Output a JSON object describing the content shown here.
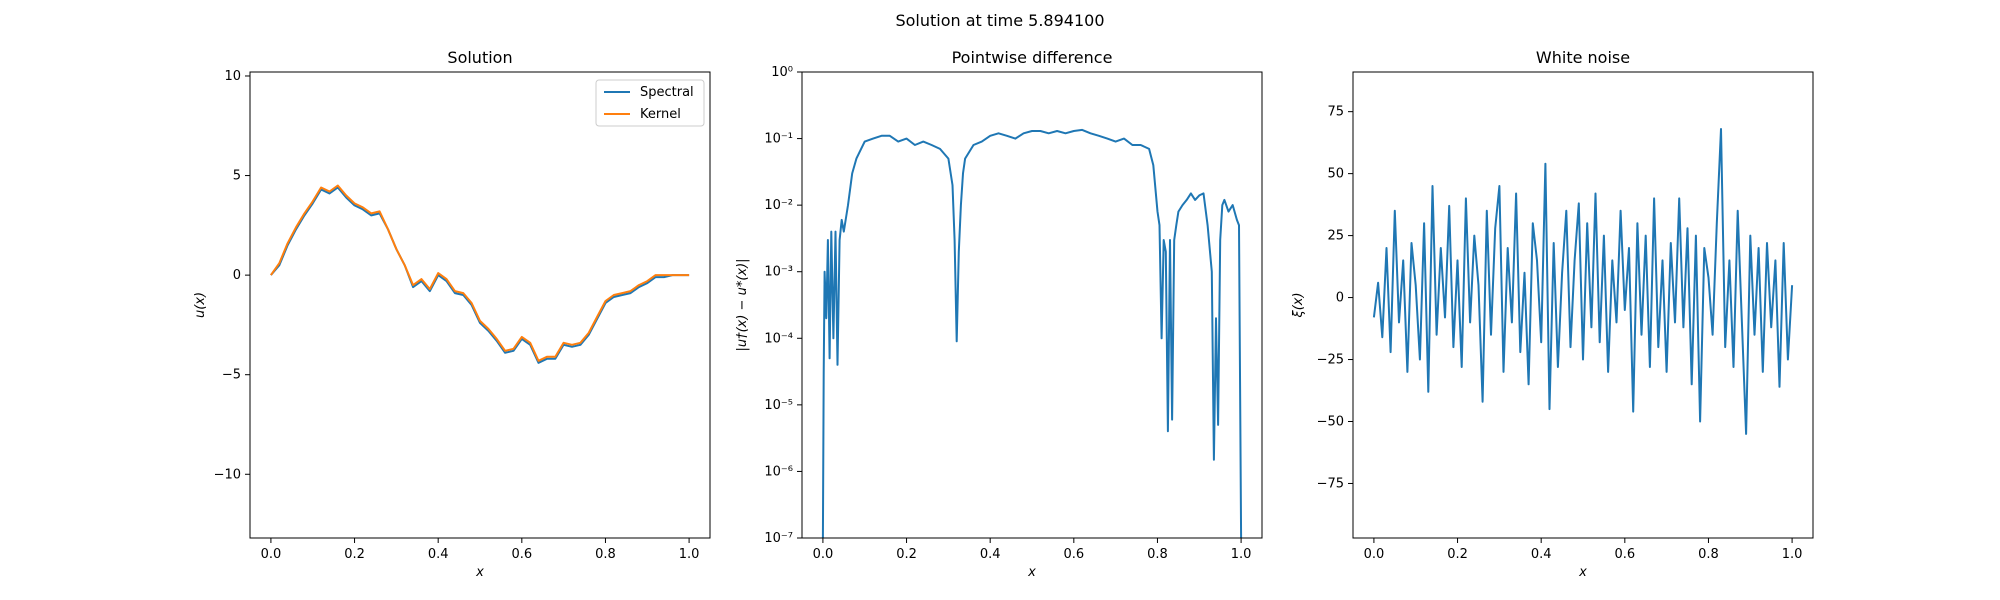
{
  "figure": {
    "suptitle": "Solution at time 5.894100"
  },
  "colors": {
    "spectral": "#1f77b4",
    "kernel": "#ff7f0e",
    "line": "#1f77b4"
  },
  "chart_data": [
    {
      "type": "line",
      "title": "Solution",
      "xlabel": "x",
      "ylabel": "u(x)",
      "xlim": [
        -0.05,
        1.05
      ],
      "ylim": [
        -13.2,
        10.2
      ],
      "xticks": [
        0.0,
        0.2,
        0.4,
        0.6,
        0.8,
        1.0
      ],
      "xtick_labels": [
        "0.0",
        "0.2",
        "0.4",
        "0.6",
        "0.8",
        "1.0"
      ],
      "yticks": [
        -10,
        -5,
        0,
        5,
        10
      ],
      "ytick_labels": [
        "−10",
        "−5",
        "0",
        "5",
        "10"
      ],
      "legend": "top-right",
      "series": [
        {
          "name": "Spectral",
          "x": [
            0.0,
            0.02,
            0.04,
            0.06,
            0.08,
            0.1,
            0.12,
            0.14,
            0.16,
            0.18,
            0.2,
            0.22,
            0.24,
            0.26,
            0.28,
            0.3,
            0.32,
            0.34,
            0.36,
            0.38,
            0.4,
            0.42,
            0.44,
            0.46,
            0.48,
            0.5,
            0.52,
            0.54,
            0.56,
            0.58,
            0.6,
            0.62,
            0.64,
            0.66,
            0.68,
            0.7,
            0.72,
            0.74,
            0.76,
            0.78,
            0.8,
            0.82,
            0.84,
            0.86,
            0.88,
            0.9,
            0.92,
            0.94,
            0.96,
            0.98,
            1.0
          ],
          "values": [
            0.0,
            0.5,
            1.5,
            2.3,
            3.0,
            3.6,
            4.3,
            4.1,
            4.4,
            3.9,
            3.5,
            3.3,
            3.0,
            3.1,
            2.3,
            1.3,
            0.5,
            -0.6,
            -0.3,
            -0.8,
            0.0,
            -0.3,
            -0.9,
            -1.0,
            -1.5,
            -2.4,
            -2.8,
            -3.3,
            -3.9,
            -3.8,
            -3.2,
            -3.5,
            -4.4,
            -4.2,
            -4.2,
            -3.5,
            -3.6,
            -3.5,
            -3.0,
            -2.2,
            -1.4,
            -1.1,
            -1.0,
            -0.9,
            -0.6,
            -0.4,
            -0.1,
            -0.1,
            0.0,
            0.0,
            0.0
          ]
        },
        {
          "name": "Kernel",
          "x": [
            0.0,
            0.02,
            0.04,
            0.06,
            0.08,
            0.1,
            0.12,
            0.14,
            0.16,
            0.18,
            0.2,
            0.22,
            0.24,
            0.26,
            0.28,
            0.3,
            0.32,
            0.34,
            0.36,
            0.38,
            0.4,
            0.42,
            0.44,
            0.46,
            0.48,
            0.5,
            0.52,
            0.54,
            0.56,
            0.58,
            0.6,
            0.62,
            0.64,
            0.66,
            0.68,
            0.7,
            0.72,
            0.74,
            0.76,
            0.78,
            0.8,
            0.82,
            0.84,
            0.86,
            0.88,
            0.9,
            0.92,
            0.94,
            0.96,
            0.98,
            1.0
          ],
          "values": [
            0.0,
            0.6,
            1.6,
            2.4,
            3.1,
            3.7,
            4.4,
            4.2,
            4.5,
            4.0,
            3.6,
            3.4,
            3.1,
            3.2,
            2.3,
            1.3,
            0.5,
            -0.5,
            -0.2,
            -0.7,
            0.1,
            -0.2,
            -0.8,
            -0.9,
            -1.4,
            -2.3,
            -2.7,
            -3.2,
            -3.8,
            -3.7,
            -3.1,
            -3.4,
            -4.3,
            -4.1,
            -4.1,
            -3.4,
            -3.5,
            -3.4,
            -2.9,
            -2.1,
            -1.3,
            -1.0,
            -0.9,
            -0.8,
            -0.5,
            -0.3,
            0.0,
            0.0,
            0.0,
            0.0,
            0.0
          ]
        }
      ]
    },
    {
      "type": "line",
      "title": "Pointwise difference",
      "xlabel": "x",
      "ylabel": "|u†(x) − u*(x)|",
      "yscale": "log",
      "xlim": [
        -0.05,
        1.05
      ],
      "ylim": [
        1e-07,
        1
      ],
      "xticks": [
        0.0,
        0.2,
        0.4,
        0.6,
        0.8,
        1.0
      ],
      "xtick_labels": [
        "0.0",
        "0.2",
        "0.4",
        "0.6",
        "0.8",
        "1.0"
      ],
      "yticks": [
        1e-07,
        1e-06,
        1e-05,
        0.0001,
        0.001,
        0.01,
        0.1,
        1
      ],
      "ytick_labels": [
        "10⁻⁷",
        "10⁻⁶",
        "10⁻⁵",
        "10⁻⁴",
        "10⁻³",
        "10⁻²",
        "10⁻¹",
        "10⁰"
      ],
      "series": [
        {
          "x": [
            0.0,
            0.002,
            0.004,
            0.008,
            0.012,
            0.016,
            0.02,
            0.025,
            0.03,
            0.035,
            0.04,
            0.045,
            0.05,
            0.06,
            0.07,
            0.08,
            0.1,
            0.12,
            0.14,
            0.16,
            0.18,
            0.2,
            0.22,
            0.24,
            0.26,
            0.28,
            0.3,
            0.31,
            0.315,
            0.32,
            0.325,
            0.33,
            0.335,
            0.34,
            0.36,
            0.38,
            0.4,
            0.42,
            0.44,
            0.46,
            0.48,
            0.5,
            0.52,
            0.54,
            0.56,
            0.58,
            0.6,
            0.62,
            0.64,
            0.66,
            0.68,
            0.7,
            0.72,
            0.74,
            0.76,
            0.78,
            0.79,
            0.8,
            0.805,
            0.81,
            0.815,
            0.82,
            0.825,
            0.83,
            0.835,
            0.84,
            0.845,
            0.85,
            0.86,
            0.87,
            0.88,
            0.89,
            0.9,
            0.91,
            0.92,
            0.93,
            0.935,
            0.94,
            0.945,
            0.95,
            0.955,
            0.96,
            0.97,
            0.98,
            0.99,
            0.995,
            1.0
          ],
          "values": [
            1e-07,
            3e-05,
            0.001,
            0.0002,
            0.003,
            5e-05,
            0.004,
            0.0001,
            0.004,
            4e-05,
            0.003,
            0.006,
            0.004,
            0.01,
            0.03,
            0.05,
            0.09,
            0.1,
            0.11,
            0.11,
            0.09,
            0.1,
            0.08,
            0.09,
            0.08,
            0.07,
            0.05,
            0.02,
            0.003,
            9e-05,
            0.002,
            0.01,
            0.03,
            0.05,
            0.08,
            0.09,
            0.11,
            0.12,
            0.11,
            0.1,
            0.12,
            0.13,
            0.13,
            0.12,
            0.13,
            0.12,
            0.13,
            0.135,
            0.12,
            0.11,
            0.1,
            0.09,
            0.1,
            0.08,
            0.08,
            0.07,
            0.04,
            0.008,
            0.005,
            0.0001,
            0.003,
            0.002,
            4e-06,
            0.003,
            6e-06,
            0.003,
            0.005,
            0.008,
            0.01,
            0.012,
            0.015,
            0.012,
            0.014,
            0.015,
            0.005,
            0.001,
            1.5e-06,
            0.0002,
            5e-06,
            0.003,
            0.01,
            0.012,
            0.008,
            0.01,
            0.006,
            0.005,
            1e-07
          ]
        }
      ]
    },
    {
      "type": "line",
      "title": "White noise",
      "xlabel": "x",
      "ylabel": "ξ(x)",
      "xlim": [
        -0.05,
        1.05
      ],
      "ylim": [
        -97,
        91
      ],
      "xticks": [
        0.0,
        0.2,
        0.4,
        0.6,
        0.8,
        1.0
      ],
      "xtick_labels": [
        "0.0",
        "0.2",
        "0.4",
        "0.6",
        "0.8",
        "1.0"
      ],
      "yticks": [
        -75,
        -50,
        -25,
        0,
        25,
        50,
        75
      ],
      "ytick_labels": [
        "−75",
        "−50",
        "−25",
        "0",
        "25",
        "50",
        "75"
      ],
      "series": [
        {
          "x": [
            0.0,
            0.01,
            0.02,
            0.03,
            0.04,
            0.05,
            0.06,
            0.07,
            0.08,
            0.09,
            0.1,
            0.11,
            0.12,
            0.13,
            0.14,
            0.15,
            0.16,
            0.17,
            0.18,
            0.19,
            0.2,
            0.21,
            0.22,
            0.23,
            0.24,
            0.25,
            0.26,
            0.27,
            0.28,
            0.29,
            0.3,
            0.31,
            0.32,
            0.33,
            0.34,
            0.35,
            0.36,
            0.37,
            0.38,
            0.39,
            0.4,
            0.41,
            0.42,
            0.43,
            0.44,
            0.45,
            0.46,
            0.47,
            0.48,
            0.49,
            0.5,
            0.51,
            0.52,
            0.53,
            0.54,
            0.55,
            0.56,
            0.57,
            0.58,
            0.59,
            0.6,
            0.61,
            0.62,
            0.63,
            0.64,
            0.65,
            0.66,
            0.67,
            0.68,
            0.69,
            0.7,
            0.71,
            0.72,
            0.73,
            0.74,
            0.75,
            0.76,
            0.77,
            0.78,
            0.79,
            0.8,
            0.81,
            0.82,
            0.83,
            0.84,
            0.85,
            0.86,
            0.87,
            0.88,
            0.89,
            0.9,
            0.91,
            0.92,
            0.93,
            0.94,
            0.95,
            0.96,
            0.97,
            0.98,
            0.99,
            1.0
          ],
          "values": [
            -8,
            6,
            -16,
            20,
            -22,
            35,
            -10,
            15,
            -30,
            22,
            5,
            -25,
            30,
            -38,
            45,
            -15,
            20,
            -8,
            37,
            -20,
            15,
            -28,
            40,
            -10,
            25,
            5,
            -42,
            35,
            -15,
            28,
            45,
            -30,
            20,
            -10,
            42,
            -22,
            10,
            -35,
            30,
            15,
            -18,
            54,
            -45,
            22,
            -28,
            10,
            35,
            -20,
            15,
            38,
            -25,
            30,
            -12,
            42,
            -18,
            25,
            -30,
            15,
            -10,
            35,
            -5,
            20,
            -46,
            30,
            -15,
            25,
            -28,
            40,
            -20,
            15,
            -30,
            22,
            -10,
            40,
            -12,
            28,
            -35,
            25,
            -50,
            20,
            8,
            -15,
            30,
            68,
            -20,
            15,
            -28,
            35,
            -10,
            -55,
            25,
            -15,
            20,
            -30,
            22,
            -12,
            15,
            -36,
            22,
            -25,
            5
          ]
        }
      ]
    }
  ]
}
